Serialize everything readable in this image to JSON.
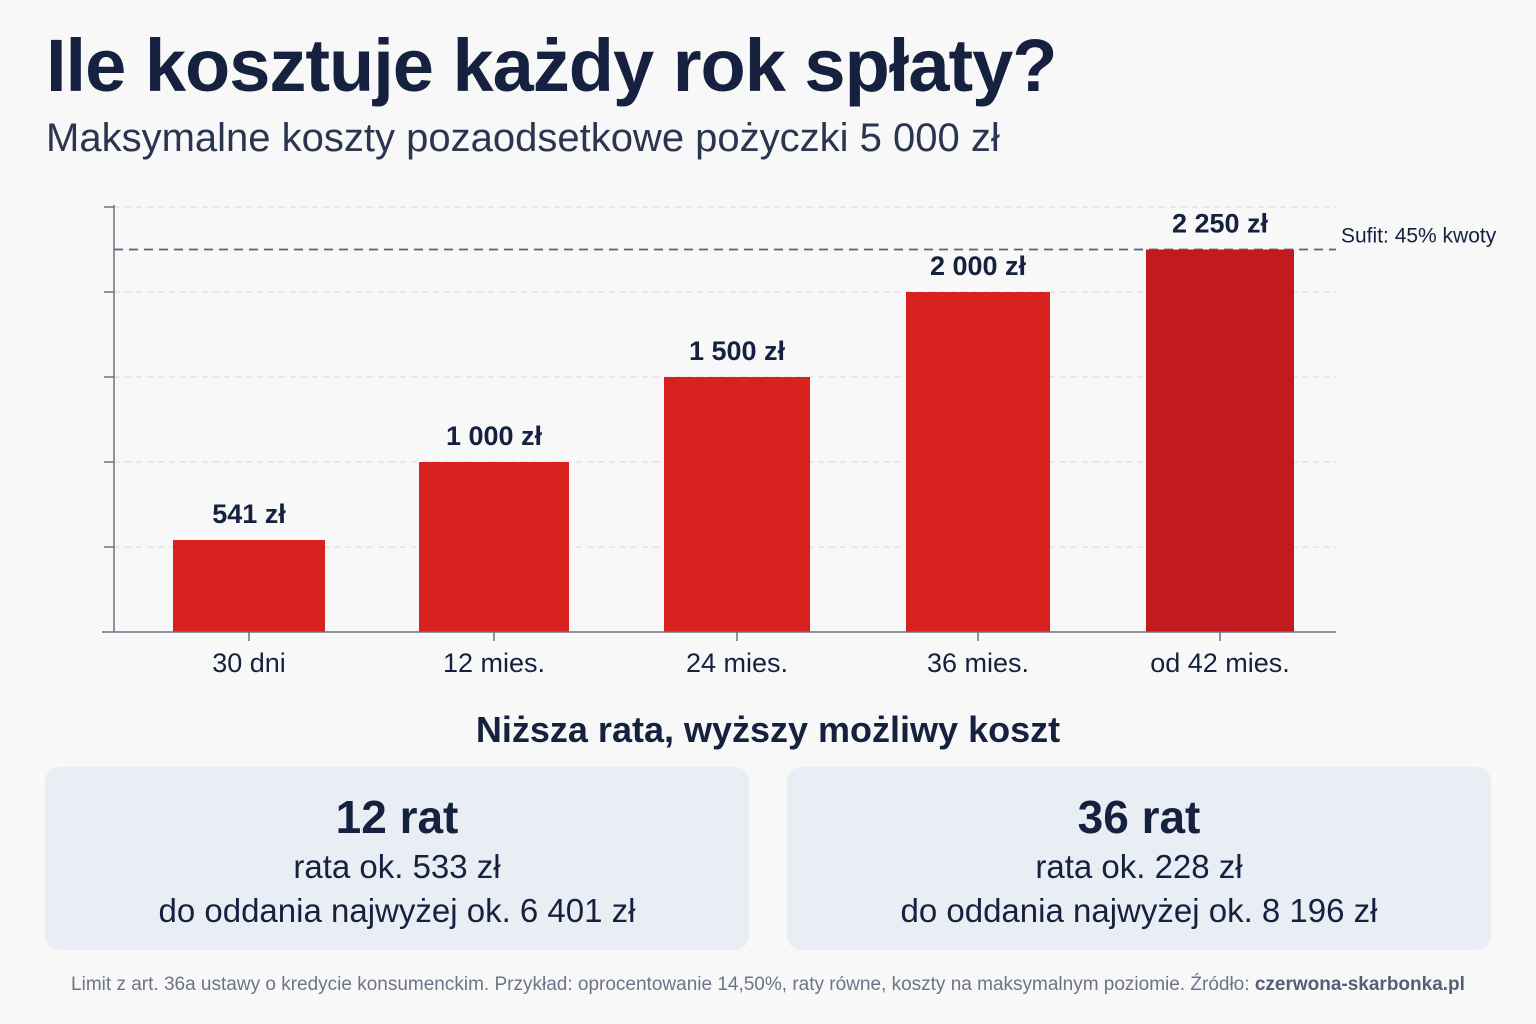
{
  "header": {
    "title": "Ile kosztuje każdy rok spłaty?",
    "subtitle": "Maksymalne koszty pozaodsetkowe pożyczki 5 000 zł"
  },
  "chart_data": {
    "type": "bar",
    "categories": [
      "30 dni",
      "12 mies.",
      "24 mies.",
      "36 mies.",
      "od 42 mies."
    ],
    "values": [
      541,
      1000,
      1500,
      2000,
      2250
    ],
    "data_labels": [
      "541 zł",
      "1 000 zł",
      "1 500 zł",
      "2 000 zł",
      "2 250 zł"
    ],
    "ylim": [
      0,
      2500
    ],
    "grid": true,
    "reference_line": {
      "value": 2250,
      "label": "Sufit: 45% kwoty"
    },
    "colors": {
      "bar": "#d9221f",
      "highlight_bar": "#c11b1f",
      "ref_line": "#5a6079"
    }
  },
  "comparison": {
    "heading": "Niższa rata, wyższy możliwy koszt",
    "cards": [
      {
        "heading": "12 rat",
        "installment": "rata ok. 533 zł",
        "total": "do oddania najwyżej ok. 6 401 zł"
      },
      {
        "heading": "36 rat",
        "installment": "rata ok. 228 zł",
        "total": "do oddania najwyżej ok. 8 196 zł"
      }
    ]
  },
  "footnote": {
    "text": "Limit z art. 36a ustawy o kredycie konsumenckim. Przykład: oprocentowanie 14,50%, raty równe, koszty na maksymalnym poziomie. Źródło: ",
    "source": "czerwona-skarbonka.pl"
  }
}
